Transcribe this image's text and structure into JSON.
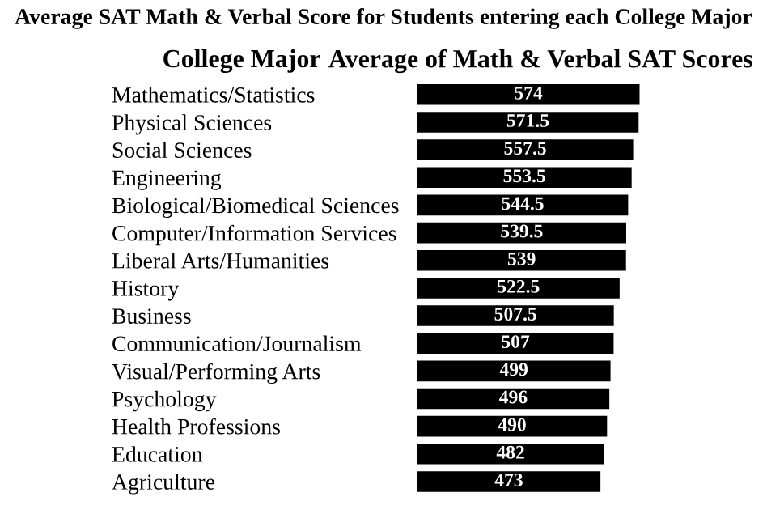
{
  "chart_data": {
    "type": "bar",
    "orientation": "horizontal",
    "title": "Average SAT Math & Verbal Score for Students entering each College Major",
    "ylabel": "College Major",
    "xlabel": "Average of Math & Verbal SAT Scores",
    "categories": [
      "Mathematics/Statistics",
      "Physical Sciences",
      "Social Sciences",
      "Engineering",
      "Biological/Biomedical Sciences",
      "Computer/Information Services",
      "Liberal Arts/Humanities",
      "History",
      "Business",
      "Communication/Journalism",
      "Visual/Performing Arts",
      "Psychology",
      "Health Professions",
      "Education",
      "Agriculture"
    ],
    "values": [
      574,
      571.5,
      557.5,
      553.5,
      544.5,
      539.5,
      539,
      522.5,
      507.5,
      507,
      499,
      496,
      490,
      482,
      473
    ],
    "color": "#000000",
    "data_labels": true,
    "grid": false,
    "legend": false
  }
}
